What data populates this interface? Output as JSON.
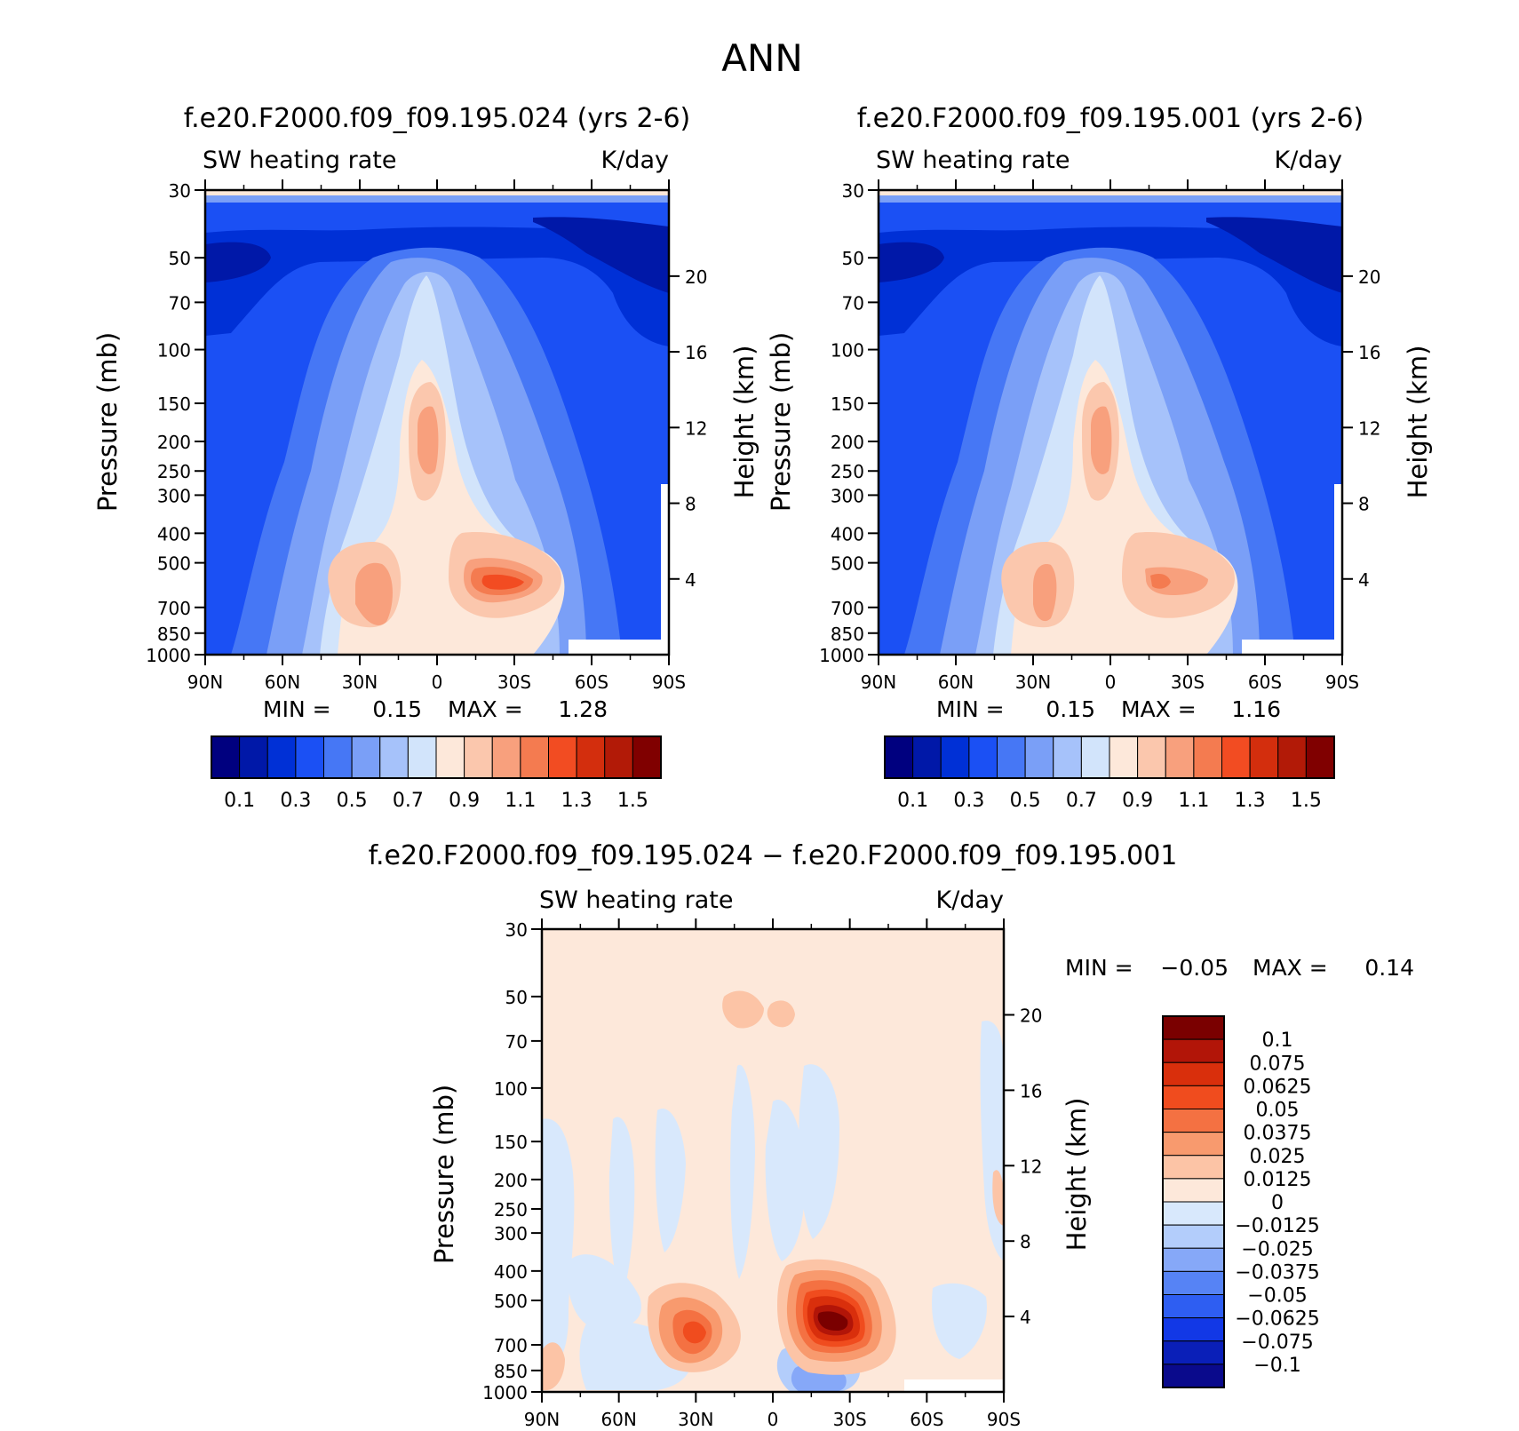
{
  "page_title": "ANN",
  "colors": {
    "seq_scale": [
      "#00007f",
      "#0018a8",
      "#0030d6",
      "#1b50f4",
      "#4677f5",
      "#7a9ff7",
      "#a6c2fa",
      "#d2e4fb",
      "#fde8da",
      "#fbc7ad",
      "#f8a07d",
      "#f47b50",
      "#f24c22",
      "#d32e0d",
      "#b21a07",
      "#800000"
    ],
    "diff_scale": [
      "#0a0a8c",
      "#0a1fb8",
      "#1238e6",
      "#2e5ef2",
      "#5683f5",
      "#86a8f8",
      "#b3cdfb",
      "#d8e8fc",
      "#fde8da",
      "#fcc4a6",
      "#f89a6e",
      "#f47142",
      "#f04c1e",
      "#d92f0c",
      "#b21508",
      "#7a0000"
    ]
  },
  "chart_data": [
    {
      "type": "heatmap",
      "title": "f.e20.F2000.f09_f09.195.024 (yrs 2-6)",
      "left_label": "SW heating rate",
      "right_label": "K/day",
      "ylabel": "Pressure (mb)",
      "y2label": "Height (km)",
      "x_ticks": [
        "90N",
        "60N",
        "30N",
        "0",
        "30S",
        "60S",
        "90S"
      ],
      "y_ticks": [
        "30",
        "50",
        "70",
        "100",
        "150",
        "200",
        "250",
        "300",
        "400",
        "500",
        "700",
        "850",
        "1000"
      ],
      "y2_ticks": [
        "20",
        "16",
        "12",
        "8",
        "4"
      ],
      "min_label": "MIN =",
      "min_value": "0.15",
      "max_label": "MAX =",
      "max_value": "1.28",
      "colorbar_labels": [
        "0.1",
        "0.3",
        "0.5",
        "0.7",
        "0.9",
        "1.1",
        "1.3",
        "1.5"
      ],
      "z_range": [
        0.15,
        1.28
      ]
    },
    {
      "type": "heatmap",
      "title": "f.e20.F2000.f09_f09.195.001 (yrs 2-6)",
      "left_label": "SW heating rate",
      "right_label": "K/day",
      "ylabel": "Pressure (mb)",
      "y2label": "Height (km)",
      "x_ticks": [
        "90N",
        "60N",
        "30N",
        "0",
        "30S",
        "60S",
        "90S"
      ],
      "y_ticks": [
        "30",
        "50",
        "70",
        "100",
        "150",
        "200",
        "250",
        "300",
        "400",
        "500",
        "700",
        "850",
        "1000"
      ],
      "y2_ticks": [
        "20",
        "16",
        "12",
        "8",
        "4"
      ],
      "min_label": "MIN =",
      "min_value": "0.15",
      "max_label": "MAX =",
      "max_value": "1.16",
      "colorbar_labels": [
        "0.1",
        "0.3",
        "0.5",
        "0.7",
        "0.9",
        "1.1",
        "1.3",
        "1.5"
      ],
      "z_range": [
        0.15,
        1.16
      ]
    },
    {
      "type": "heatmap",
      "title": "f.e20.F2000.f09_f09.195.024 − f.e20.F2000.f09_f09.195.001",
      "left_label": "SW heating rate",
      "right_label": "K/day",
      "ylabel": "Pressure (mb)",
      "y2label": "Height (km)",
      "x_ticks": [
        "90N",
        "60N",
        "30N",
        "0",
        "30S",
        "60S",
        "90S"
      ],
      "y_ticks": [
        "30",
        "50",
        "70",
        "100",
        "150",
        "200",
        "250",
        "300",
        "400",
        "500",
        "700",
        "850",
        "1000"
      ],
      "y2_ticks": [
        "20",
        "16",
        "12",
        "8",
        "4"
      ],
      "min_label": "MIN =",
      "min_value": "−0.05",
      "max_label": "MAX =",
      "max_value": "0.14",
      "colorbar_labels": [
        "0.1",
        "0.075",
        "0.0625",
        "0.05",
        "0.0375",
        "0.025",
        "0.0125",
        "0",
        "−0.0125",
        "−0.025",
        "−0.0375",
        "−0.05",
        "−0.0625",
        "−0.075",
        "−0.1"
      ],
      "z_range": [
        -0.05,
        0.14
      ]
    }
  ]
}
